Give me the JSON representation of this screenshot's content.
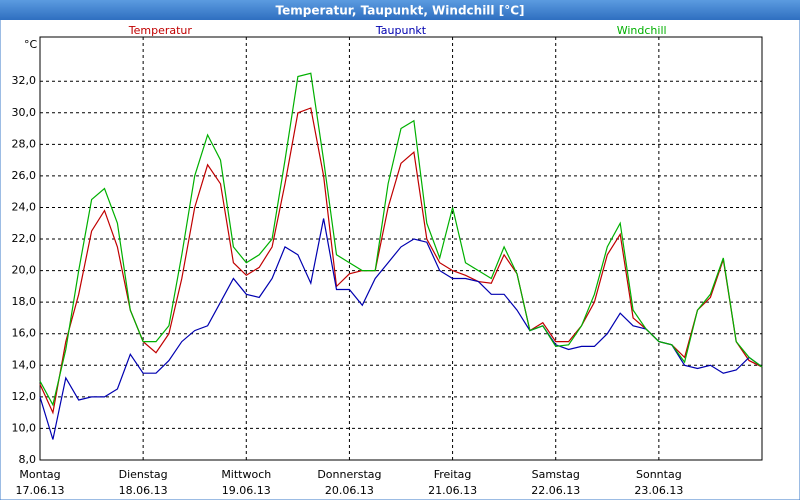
{
  "chart_data": {
    "type": "line",
    "title": "Temperatur, Taupunkt, Windchill [°C]",
    "y_label": "°C",
    "x": [
      0,
      0.125,
      0.25,
      0.375,
      0.5,
      0.625,
      0.75,
      0.875,
      1,
      1.125,
      1.25,
      1.375,
      1.5,
      1.625,
      1.75,
      1.875,
      2,
      2.125,
      2.25,
      2.375,
      2.5,
      2.625,
      2.75,
      2.875,
      3,
      3.125,
      3.25,
      3.375,
      3.5,
      3.625,
      3.75,
      3.875,
      4,
      4.125,
      4.25,
      4.375,
      4.5,
      4.625,
      4.75,
      4.875,
      5,
      5.125,
      5.25,
      5.375,
      5.5,
      5.625,
      5.75,
      5.875,
      6,
      6.125,
      6.25,
      6.375,
      6.5,
      6.625,
      6.75,
      6.875,
      7
    ],
    "series": [
      {
        "name": "Temperatur",
        "color": "#c00000",
        "values": [
          12.8,
          11.0,
          15.5,
          18.5,
          22.5,
          23.8,
          21.5,
          17.5,
          15.5,
          14.8,
          16,
          19.5,
          24,
          26.7,
          25.5,
          20.5,
          19.7,
          20.2,
          21.5,
          25.5,
          30.0,
          30.3,
          26,
          19,
          19.8,
          20,
          20,
          24,
          26.8,
          27.5,
          22,
          20.5,
          20,
          19.7,
          19.3,
          19.2,
          21,
          19.8,
          16.2,
          16.7,
          15.5,
          15.5,
          16.5,
          18,
          21,
          22.3,
          17,
          16.3,
          15.5,
          15.3,
          14.5,
          17.5,
          18.3,
          20.7,
          15.5,
          14.3,
          13.9
        ]
      },
      {
        "name": "Taupunkt",
        "color": "#0000b0",
        "values": [
          12.0,
          9.3,
          13.2,
          11.8,
          12,
          12.0,
          12.5,
          14.7,
          13.5,
          13.5,
          14.3,
          15.5,
          16.2,
          16.5,
          18,
          19.5,
          18.5,
          18.3,
          19.5,
          21.5,
          21.0,
          19.2,
          23.3,
          18.8,
          18.8,
          17.8,
          19.5,
          20.5,
          21.5,
          22,
          21.8,
          20,
          19.5,
          19.5,
          19.3,
          18.5,
          18.5,
          17.5,
          16.2,
          16.5,
          15.3,
          15.0,
          15.2,
          15.2,
          16,
          17.3,
          16.5,
          16.3,
          15.5,
          15.3,
          14,
          13.8,
          14.0,
          13.5,
          13.7,
          14.5,
          13.9
        ]
      },
      {
        "name": "Windchill",
        "color": "#00b000",
        "values": [
          13,
          11.5,
          15,
          20,
          24.5,
          25.2,
          23,
          17.5,
          15.5,
          15.5,
          16.5,
          21,
          26,
          28.6,
          27,
          21.5,
          20.5,
          21,
          22,
          27,
          32.3,
          32.5,
          27,
          21,
          20.5,
          20,
          20,
          25.5,
          29,
          29.5,
          23,
          20.8,
          24,
          20.5,
          20,
          19.5,
          21.5,
          19.8,
          16.2,
          16.5,
          15.2,
          15.3,
          16.5,
          18.5,
          21.5,
          23,
          17.5,
          16.3,
          15.5,
          15.3,
          14.2,
          17.5,
          18.5,
          20.8,
          15.5,
          14.5,
          13.9
        ]
      }
    ],
    "xlim": [
      0,
      7
    ],
    "xticks": [
      {
        "value": 0,
        "label": "Montag",
        "date": "17.06.13"
      },
      {
        "value": 1,
        "label": "Dienstag",
        "date": "18.06.13"
      },
      {
        "value": 2,
        "label": "Mittwoch",
        "date": "19.06.13"
      },
      {
        "value": 3,
        "label": "Donnerstag",
        "date": "20.06.13"
      },
      {
        "value": 4,
        "label": "Freitag",
        "date": "21.06.13"
      },
      {
        "value": 5,
        "label": "Samstag",
        "date": "22.06.13"
      },
      {
        "value": 6,
        "label": "Sonntag",
        "date": "23.06.13"
      }
    ],
    "ylim": [
      8,
      34.8
    ],
    "yticks": [
      {
        "value": 8,
        "label": "8,0"
      },
      {
        "value": 10,
        "label": "10,0"
      },
      {
        "value": 12,
        "label": "12,0"
      },
      {
        "value": 14,
        "label": "14,0"
      },
      {
        "value": 16,
        "label": "16,0"
      },
      {
        "value": 18,
        "label": "18,0"
      },
      {
        "value": 20,
        "label": "20,0"
      },
      {
        "value": 22,
        "label": "22,0"
      },
      {
        "value": 24,
        "label": "24,0"
      },
      {
        "value": 26,
        "label": "26,0"
      },
      {
        "value": 28,
        "label": "28,0"
      },
      {
        "value": 30,
        "label": "30,0"
      },
      {
        "value": 32,
        "label": "32,0"
      }
    ],
    "grid": true
  }
}
